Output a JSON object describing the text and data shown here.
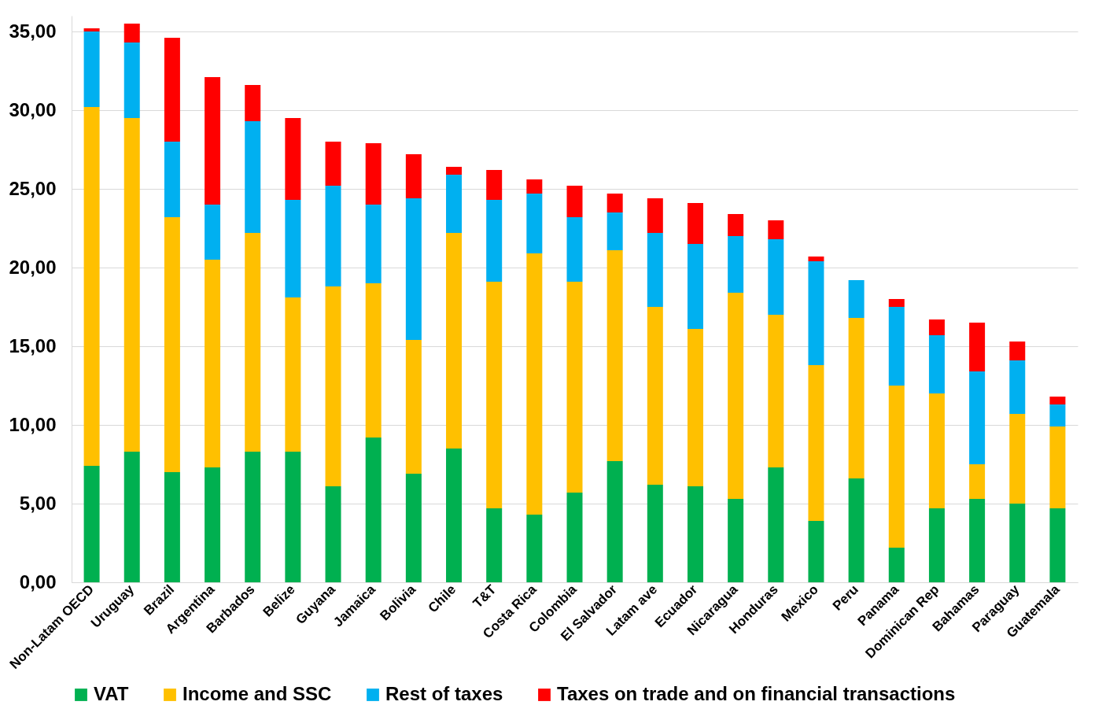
{
  "chart_data": {
    "type": "bar",
    "stacked": true,
    "categories": [
      "Non-Latam OECD",
      "Uruguay",
      "Brazil",
      "Argentina",
      "Barbados",
      "Belize",
      "Guyana",
      "Jamaica",
      "Bolivia",
      "Chile",
      "T&T",
      "Costa Rica",
      "Colombia",
      "El Salvador",
      "Latam ave",
      "Ecuador",
      "Nicaragua",
      "Honduras",
      "Mexico",
      "Peru",
      "Panama",
      "Dominican Rep",
      "Bahamas",
      "Paraguay",
      "Guatemala"
    ],
    "series": [
      {
        "name": "VAT",
        "color": "#00b050",
        "values": [
          7.4,
          8.3,
          7.0,
          7.3,
          8.3,
          8.3,
          6.1,
          9.2,
          6.9,
          8.5,
          4.7,
          4.3,
          5.7,
          7.7,
          6.2,
          6.1,
          5.3,
          7.3,
          3.9,
          6.6,
          2.2,
          4.7,
          5.3,
          5.0,
          4.7
        ]
      },
      {
        "name": "Income and SSC",
        "color": "#ffc000",
        "values": [
          22.8,
          21.2,
          16.2,
          13.2,
          13.9,
          9.8,
          12.7,
          9.8,
          8.5,
          13.7,
          14.4,
          16.6,
          13.4,
          13.4,
          11.3,
          10.0,
          13.1,
          9.7,
          9.9,
          10.2,
          10.3,
          7.3,
          2.2,
          5.7,
          5.2
        ]
      },
      {
        "name": "Rest of taxes",
        "color": "#00b0f0",
        "values": [
          4.8,
          4.8,
          4.8,
          3.5,
          7.1,
          6.2,
          6.4,
          5.0,
          9.0,
          3.7,
          5.2,
          3.8,
          4.1,
          2.4,
          4.7,
          5.4,
          3.6,
          4.8,
          6.6,
          2.4,
          5.0,
          3.7,
          5.9,
          3.4,
          1.4
        ]
      },
      {
        "name": "Taxes on trade and on financial transactions",
        "color": "#ff0000",
        "values": [
          0.2,
          1.2,
          6.6,
          8.1,
          2.3,
          5.2,
          2.8,
          3.9,
          2.8,
          0.5,
          1.9,
          0.9,
          2.0,
          1.2,
          2.2,
          2.6,
          1.4,
          1.2,
          0.3,
          0,
          0.5,
          1.0,
          3.1,
          1.2,
          0.5
        ]
      }
    ],
    "ylim": [
      0,
      36
    ],
    "yticks": [
      {
        "value": 0,
        "label": "0,00"
      },
      {
        "value": 5,
        "label": "5,00"
      },
      {
        "value": 10,
        "label": "10,00"
      },
      {
        "value": 15,
        "label": "15,00"
      },
      {
        "value": 20,
        "label": "20,00"
      },
      {
        "value": 25,
        "label": "25,00"
      },
      {
        "value": 30,
        "label": "30,00"
      },
      {
        "value": 35,
        "label": "35,00"
      }
    ],
    "grid": "y",
    "legend": "bottom"
  }
}
